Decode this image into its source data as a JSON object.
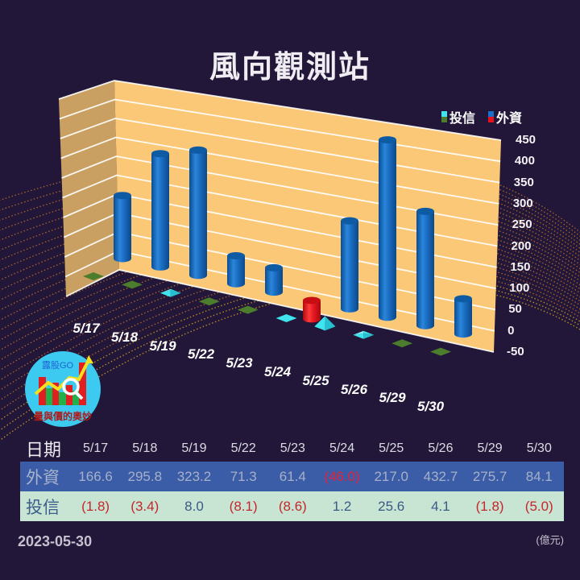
{
  "header": {
    "title": "風向觀測站"
  },
  "legend": [
    {
      "label": "投信",
      "colors": [
        "#3fe4ee",
        "#4b7d2c"
      ]
    },
    {
      "label": "外資",
      "colors": [
        "#1a6fc8",
        "#e8101a"
      ]
    }
  ],
  "logo": {
    "brand": "露股GO",
    "tagline": "量與價的奧妙",
    "icon": "chart-magnifier-logo"
  },
  "chart_data": {
    "type": "bar",
    "title": "風向觀測站",
    "xlabel": "",
    "ylabel": "",
    "categories": [
      "5/17",
      "5/18",
      "5/19",
      "5/22",
      "5/23",
      "5/24",
      "5/25",
      "5/26",
      "5/29",
      "5/30"
    ],
    "series": [
      {
        "name": "外資",
        "values": [
          166.6,
          295.8,
          323.2,
          71.3,
          61.4,
          -46.0,
          217.0,
          432.7,
          275.7,
          84.1
        ]
      },
      {
        "name": "投信",
        "values": [
          -1.8,
          -3.4,
          8.0,
          -8.1,
          -8.6,
          1.2,
          25.6,
          4.1,
          -1.8,
          -5.0
        ]
      }
    ],
    "ylim": [
      -50,
      450
    ],
    "yticks": [
      450,
      400,
      350,
      300,
      250,
      200,
      150,
      100,
      50,
      0,
      -50
    ],
    "grid": true,
    "legend_position": "top-right",
    "style": "3d-cylinder-and-pyramid",
    "unit": "億元",
    "colors": {
      "foreign_positive": "#1a6fc8",
      "foreign_negative": "#e8101a",
      "trust_positive": "#3fe4ee",
      "trust_negative": "#4b7d2c"
    }
  },
  "table": {
    "header_label": "日期",
    "columns": [
      "5/17",
      "5/18",
      "5/19",
      "5/22",
      "5/23",
      "5/24",
      "5/25",
      "5/26",
      "5/29",
      "5/30"
    ],
    "rows": [
      {
        "label": "外資",
        "values": [
          "166.6",
          "295.8",
          "323.2",
          "71.3",
          "61.4",
          "(46.0)",
          "217.0",
          "432.7",
          "275.7",
          "84.1"
        ]
      },
      {
        "label": "投信",
        "values": [
          "(1.8)",
          "(3.4)",
          "8.0",
          "(8.1)",
          "(8.6)",
          "1.2",
          "25.6",
          "4.1",
          "(1.8)",
          "(5.0)"
        ]
      }
    ]
  },
  "footer": {
    "date": "2023-05-30",
    "unit": "(億元)"
  }
}
